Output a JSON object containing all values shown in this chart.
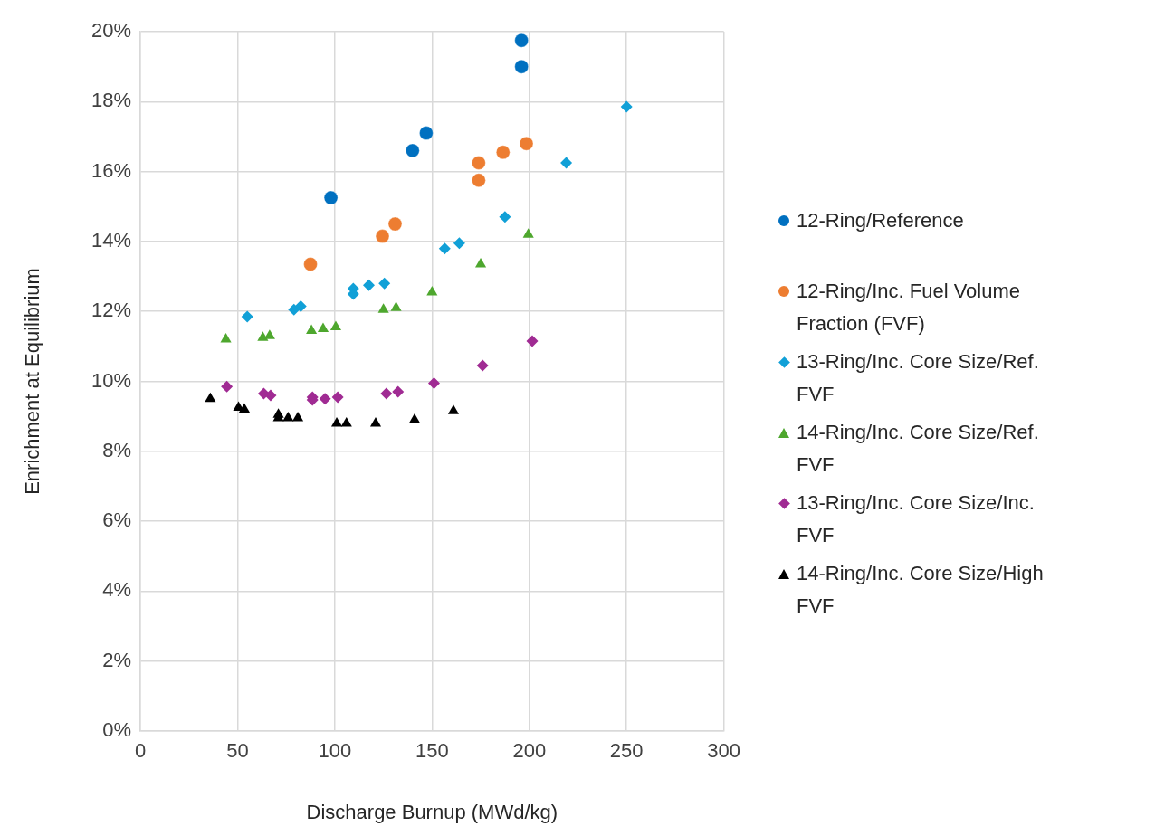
{
  "chart_data": {
    "type": "scatter",
    "xlabel": "Discharge Burnup (MWd/kg)",
    "ylabel": "Enrichment at Equilibrium",
    "xlim": [
      0,
      300
    ],
    "xticks": [
      0,
      50,
      100,
      150,
      200,
      250,
      300
    ],
    "ylim": [
      0,
      20
    ],
    "yticks": [
      {
        "value": 0,
        "label": "0%"
      },
      {
        "value": 2,
        "label": "2%"
      },
      {
        "value": 4,
        "label": "4%"
      },
      {
        "value": 6,
        "label": "6%"
      },
      {
        "value": 8,
        "label": "8%"
      },
      {
        "value": 10,
        "label": "10%"
      },
      {
        "value": 12,
        "label": "12%"
      },
      {
        "value": 14,
        "label": "14%"
      },
      {
        "value": 16,
        "label": "16%"
      },
      {
        "value": 18,
        "label": "18%"
      },
      {
        "value": 20,
        "label": "20%"
      }
    ],
    "grid": true,
    "legend": "right",
    "series": [
      {
        "name": "12-Ring/Reference",
        "color": "#0070c0",
        "marker": "circle",
        "x": [
          196,
          196,
          147,
          140,
          98
        ],
        "values": [
          19.75,
          19.0,
          17.1,
          16.6,
          15.25
        ]
      },
      {
        "name": "12-Ring/Inc. Fuel Volume Fraction (FVF)",
        "color": "#ed7d31",
        "marker": "circle",
        "x": [
          87.5,
          124.5,
          131,
          174,
          174,
          186.5,
          198.5
        ],
        "values": [
          13.35,
          14.15,
          14.5,
          16.25,
          15.75,
          16.55,
          16.8
        ]
      },
      {
        "name": "13-Ring/Inc. Core Size/Ref. FVF",
        "color": "#11a0d7",
        "marker": "diamond",
        "x": [
          55,
          79,
          82.5,
          109.5,
          109.5,
          117.5,
          125.5,
          156.5,
          164,
          187.5,
          219,
          250
        ],
        "values": [
          11.85,
          12.05,
          12.15,
          12.65,
          12.5,
          12.75,
          12.8,
          13.8,
          13.95,
          14.7,
          16.25,
          17.85
        ]
      },
      {
        "name": "14-Ring/Inc. Core Size/Ref. FVF",
        "color": "#4ea72e",
        "marker": "triangle",
        "x": [
          44,
          63,
          66.5,
          88,
          94,
          100.5,
          125,
          131.5,
          150,
          175,
          199.5
        ],
        "values": [
          11.2,
          11.25,
          11.3,
          11.45,
          11.5,
          11.55,
          12.05,
          12.1,
          12.55,
          13.35,
          14.2
        ]
      },
      {
        "name": "13-Ring/Inc. Core Size/Inc. FVF",
        "color": "#a02b93",
        "marker": "diamond",
        "x": [
          44.5,
          63.5,
          67,
          88.5,
          88.5,
          95,
          101.5,
          126.5,
          132.5,
          151,
          176,
          201.5
        ],
        "values": [
          9.85,
          9.65,
          9.6,
          9.55,
          9.47,
          9.5,
          9.55,
          9.65,
          9.7,
          9.95,
          10.45,
          11.15
        ]
      },
      {
        "name": "14-Ring/Inc. Core Size/High FVF",
        "color": "#000000",
        "marker": "triangle",
        "x": [
          36,
          50.5,
          53.5,
          71,
          71,
          76,
          81,
          101,
          106,
          121,
          141,
          161
        ],
        "values": [
          9.5,
          9.25,
          9.2,
          9.05,
          8.95,
          8.95,
          8.95,
          8.8,
          8.8,
          8.8,
          8.9,
          9.15
        ]
      }
    ]
  }
}
